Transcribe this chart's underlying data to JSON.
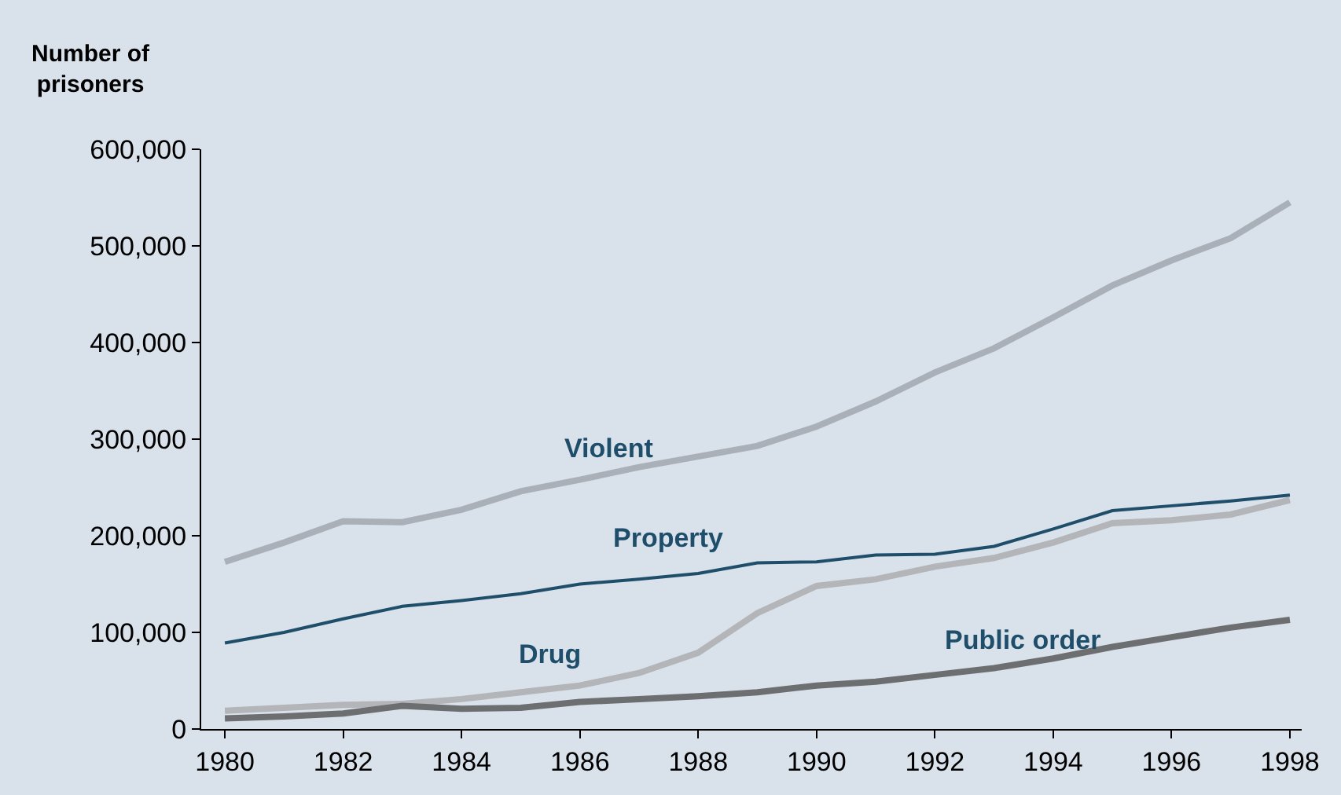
{
  "chart_data": {
    "type": "line",
    "ylabel": "Number of prisoners",
    "x": [
      1980,
      1981,
      1982,
      1983,
      1984,
      1985,
      1986,
      1987,
      1988,
      1989,
      1990,
      1991,
      1992,
      1993,
      1994,
      1995,
      1996,
      1997,
      1998
    ],
    "series": [
      {
        "name": "Violent",
        "color": "#a9b0b8",
        "values": [
          173000,
          193000,
          215000,
          214000,
          227000,
          246000,
          258000,
          271000,
          282000,
          293000,
          313000,
          339000,
          369000,
          394000,
          426000,
          459000,
          485000,
          508000,
          545000
        ]
      },
      {
        "name": "Property",
        "color": "#1f4e6b",
        "values": [
          89000,
          100000,
          114000,
          127000,
          133000,
          140000,
          150000,
          155000,
          161000,
          172000,
          173000,
          180000,
          181000,
          189000,
          207000,
          226000,
          231000,
          236000,
          242000
        ]
      },
      {
        "name": "Drug",
        "color": "#b3b5b8",
        "values": [
          19000,
          22000,
          25000,
          26000,
          31000,
          38000,
          45000,
          58000,
          79000,
          120000,
          148000,
          155000,
          168000,
          177000,
          193000,
          213000,
          216000,
          222000,
          237000
        ]
      },
      {
        "name": "Public order",
        "color": "#6d6e70",
        "values": [
          11000,
          13000,
          16000,
          24000,
          21000,
          22000,
          28000,
          31000,
          34000,
          38000,
          45000,
          49000,
          56000,
          63000,
          73000,
          85000,
          95000,
          105000,
          113000
        ]
      }
    ],
    "xlim": [
      1979.6,
      1998.2
    ],
    "xticks": [
      1980,
      1982,
      1984,
      1986,
      1988,
      1990,
      1992,
      1994,
      1996,
      1998
    ],
    "ylim": [
      0,
      600000
    ],
    "yticks": [
      {
        "value": 0,
        "label": "0"
      },
      {
        "value": 100000,
        "label": "100,000"
      },
      {
        "value": 200000,
        "label": "200,000"
      },
      {
        "value": 300000,
        "label": "300,000"
      },
      {
        "value": 400000,
        "label": "400,000"
      },
      {
        "value": 500000,
        "label": "500,000"
      },
      {
        "value": 600000,
        "label": "600,000"
      }
    ],
    "grid": false,
    "legend": false,
    "marker": "none",
    "line_style": "solid"
  }
}
